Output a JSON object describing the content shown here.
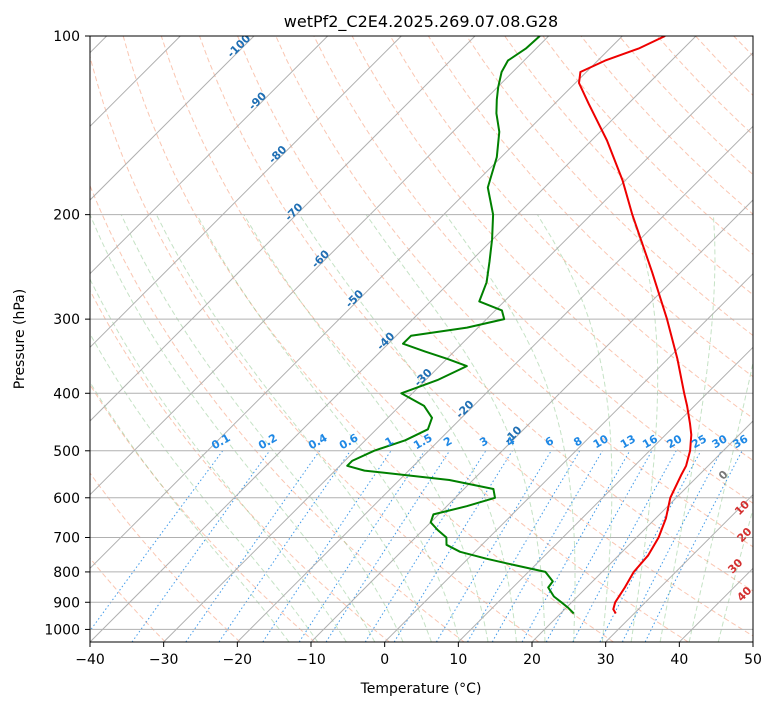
{
  "chart_data": {
    "type": "line",
    "title": "wetPf2_C2E4.2025.269.07.08.G28",
    "xlabel": "Temperature (°C)",
    "ylabel": "Pressure (hPa)",
    "xlim": [
      -40,
      50
    ],
    "ylim": [
      1050,
      100
    ],
    "y_scale": "log",
    "skew_degrees": 45,
    "grid": true,
    "x_ticks": [
      -40,
      -30,
      -20,
      -10,
      0,
      10,
      20,
      30,
      40,
      50
    ],
    "y_ticks": [
      100,
      200,
      300,
      400,
      500,
      600,
      700,
      800,
      900,
      1000
    ],
    "mixing_ratio_labels": [
      "0.1",
      "0.2",
      "0.4",
      "0.6",
      "1",
      "1.5",
      "2",
      "3",
      "4",
      "6",
      "8",
      "10",
      "13",
      "16",
      "20",
      "25",
      "30",
      "36"
    ],
    "dry_adiabat_labels": [
      "-100",
      "-90",
      "-80",
      "-70",
      "-60",
      "-50",
      "-40",
      "-30",
      "-20",
      "-10"
    ],
    "moist_adiabat_labels": [
      "0",
      "10",
      "20",
      "30",
      "40"
    ],
    "series": [
      {
        "name": "Temperature",
        "color": "#ee0000",
        "points": [
          [
            940,
            27.5
          ],
          [
            925,
            26.6
          ],
          [
            900,
            25.9
          ],
          [
            850,
            25.2
          ],
          [
            800,
            24.3
          ],
          [
            750,
            24.0
          ],
          [
            700,
            23.0
          ],
          [
            650,
            21.4
          ],
          [
            600,
            19.2
          ],
          [
            550,
            17.6
          ],
          [
            530,
            17.0
          ],
          [
            500,
            15.5
          ],
          [
            470,
            13.5
          ],
          [
            450,
            11.8
          ],
          [
            420,
            9.0
          ],
          [
            400,
            6.9
          ],
          [
            350,
            1.3
          ],
          [
            300,
            -5.5
          ],
          [
            250,
            -13.9
          ],
          [
            200,
            -24.4
          ],
          [
            175,
            -30.4
          ],
          [
            150,
            -37.9
          ],
          [
            130,
            -45.4
          ],
          [
            120,
            -49.5
          ],
          [
            115,
            -50.8
          ],
          [
            110,
            -49.0
          ],
          [
            105,
            -46.1
          ],
          [
            100,
            -44.2
          ]
        ]
      },
      {
        "name": "Dewpoint",
        "color": "#008000",
        "points": [
          [
            940,
            21.8
          ],
          [
            920,
            20.3
          ],
          [
            900,
            18.6
          ],
          [
            880,
            16.8
          ],
          [
            850,
            14.8
          ],
          [
            830,
            14.6
          ],
          [
            800,
            12.3
          ],
          [
            780,
            7.4
          ],
          [
            760,
            2.5
          ],
          [
            740,
            -2.0
          ],
          [
            720,
            -4.8
          ],
          [
            700,
            -5.8
          ],
          [
            680,
            -8.0
          ],
          [
            660,
            -10.0
          ],
          [
            640,
            -10.7
          ],
          [
            620,
            -7.3
          ],
          [
            600,
            -4.6
          ],
          [
            580,
            -6.0
          ],
          [
            560,
            -13.2
          ],
          [
            540,
            -26.0
          ],
          [
            530,
            -29.0
          ],
          [
            520,
            -29.0
          ],
          [
            500,
            -27.4
          ],
          [
            480,
            -24.6
          ],
          [
            460,
            -23.0
          ],
          [
            440,
            -24.0
          ],
          [
            420,
            -26.7
          ],
          [
            400,
            -31.5
          ],
          [
            380,
            -28.4
          ],
          [
            360,
            -26.3
          ],
          [
            350,
            -29.9
          ],
          [
            340,
            -34.0
          ],
          [
            330,
            -38.0
          ],
          [
            320,
            -38.0
          ],
          [
            310,
            -31.5
          ],
          [
            300,
            -27.6
          ],
          [
            290,
            -29.1
          ],
          [
            280,
            -33.4
          ],
          [
            260,
            -35.0
          ],
          [
            240,
            -37.4
          ],
          [
            220,
            -40.1
          ],
          [
            200,
            -43.3
          ],
          [
            180,
            -47.7
          ],
          [
            160,
            -50.6
          ],
          [
            145,
            -53.7
          ],
          [
            135,
            -56.6
          ],
          [
            128,
            -58.4
          ],
          [
            122,
            -59.9
          ],
          [
            115,
            -61.5
          ],
          [
            110,
            -62.2
          ],
          [
            105,
            -61.4
          ],
          [
            100,
            -61.2
          ]
        ]
      }
    ]
  }
}
